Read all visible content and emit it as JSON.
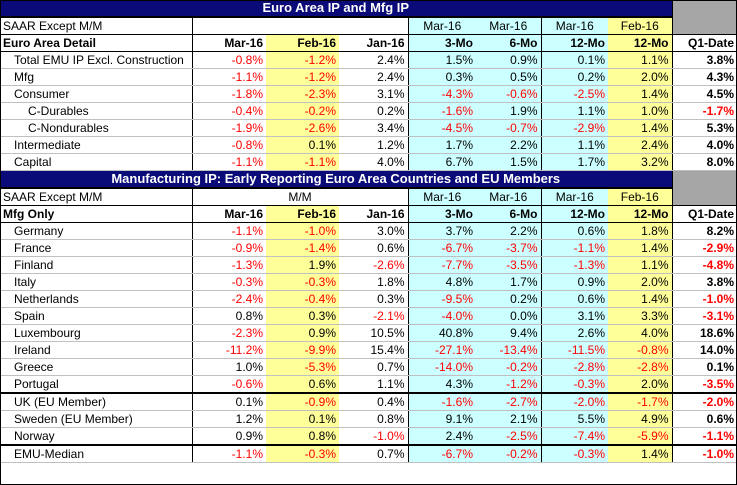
{
  "section1": {
    "title": "Euro Area IP and Mfg IP",
    "header_left": "SAAR Except M/M",
    "mm_label": "",
    "periods_top": [
      "Mar-16",
      "Mar-16",
      "Mar-16",
      "Feb-16"
    ],
    "detail_label": "Euro Area Detail",
    "columns": [
      "Mar-16",
      "Feb-16",
      "Jan-16",
      "3-Mo",
      "6-Mo",
      "12-Mo",
      "12-Mo",
      "Q1-Date"
    ],
    "rows": [
      {
        "label": "Total EMU IP Excl. Construction",
        "indent": 0,
        "values": [
          "-0.8%",
          "-1.2%",
          "2.4%",
          "1.5%",
          "0.9%",
          "0.1%",
          "1.1%",
          "3.8%"
        ]
      },
      {
        "label": "Mfg",
        "indent": 0,
        "values": [
          "-1.1%",
          "-1.2%",
          "2.4%",
          "0.3%",
          "0.5%",
          "0.2%",
          "2.0%",
          "4.3%"
        ]
      },
      {
        "label": "Consumer",
        "indent": 1,
        "values": [
          "-1.8%",
          "-2.3%",
          "3.1%",
          "-4.3%",
          "-0.6%",
          "-2.5%",
          "1.4%",
          "4.5%"
        ]
      },
      {
        "label": "C-Durables",
        "indent": 2,
        "values": [
          "-0.4%",
          "-0.2%",
          "0.2%",
          "-1.6%",
          "1.9%",
          "1.1%",
          "1.0%",
          "-1.7%"
        ]
      },
      {
        "label": "C-Nondurables",
        "indent": 2,
        "values": [
          "-1.9%",
          "-2.6%",
          "3.4%",
          "-4.5%",
          "-0.7%",
          "-2.9%",
          "1.4%",
          "5.3%"
        ]
      },
      {
        "label": "Intermediate",
        "indent": 1,
        "values": [
          "-0.8%",
          "0.1%",
          "1.2%",
          "1.7%",
          "2.2%",
          "1.1%",
          "2.4%",
          "4.0%"
        ]
      },
      {
        "label": "Capital",
        "indent": 1,
        "values": [
          "-1.1%",
          "-1.1%",
          "4.0%",
          "6.7%",
          "1.5%",
          "1.7%",
          "3.2%",
          "8.0%"
        ]
      }
    ]
  },
  "section2": {
    "title": "Manufacturing IP: Early Reporting Euro Area Countries and EU Members",
    "header_left": "SAAR Except M/M",
    "mm_label": "M/M",
    "periods_top": [
      "Mar-16",
      "Mar-16",
      "Mar-16",
      "Feb-16"
    ],
    "detail_label": "Mfg Only",
    "columns": [
      "Mar-16",
      "Feb-16",
      "Jan-16",
      "3-Mo",
      "6-Mo",
      "12-Mo",
      "12-Mo",
      "Q1-Date"
    ],
    "rows": [
      {
        "label": "Germany",
        "group": "emu",
        "values": [
          "-1.1%",
          "-1.0%",
          "3.0%",
          "3.7%",
          "2.2%",
          "0.6%",
          "1.8%",
          "8.2%"
        ]
      },
      {
        "label": "France",
        "group": "emu",
        "values": [
          "-0.9%",
          "-1.4%",
          "0.6%",
          "-6.7%",
          "-3.7%",
          "-1.1%",
          "1.4%",
          "-2.9%"
        ]
      },
      {
        "label": "Finland",
        "group": "emu",
        "values": [
          "-1.3%",
          "1.9%",
          "-2.6%",
          "-7.7%",
          "-3.5%",
          "-1.3%",
          "1.1%",
          "-4.8%"
        ]
      },
      {
        "label": "Italy",
        "group": "emu",
        "values": [
          "-0.3%",
          "-0.3%",
          "1.8%",
          "4.8%",
          "1.7%",
          "0.9%",
          "2.0%",
          "3.8%"
        ]
      },
      {
        "label": "Netherlands",
        "group": "emu",
        "values": [
          "-2.4%",
          "-0.4%",
          "0.3%",
          "-9.5%",
          "0.2%",
          "0.6%",
          "1.4%",
          "-1.0%"
        ]
      },
      {
        "label": "Spain",
        "group": "emu",
        "values": [
          "0.8%",
          "0.3%",
          "-2.1%",
          "-4.0%",
          "0.0%",
          "3.1%",
          "3.3%",
          "-3.1%"
        ]
      },
      {
        "label": "Luxembourg",
        "group": "emu",
        "values": [
          "-2.3%",
          "0.9%",
          "10.5%",
          "40.8%",
          "9.4%",
          "2.6%",
          "4.0%",
          "18.6%"
        ]
      },
      {
        "label": "Ireland",
        "group": "emu",
        "values": [
          "-11.2%",
          "-9.9%",
          "15.4%",
          "-27.1%",
          "-13.4%",
          "-11.5%",
          "-0.8%",
          "14.0%"
        ]
      },
      {
        "label": "Greece",
        "group": "emu",
        "values": [
          "1.0%",
          "-5.3%",
          "0.7%",
          "-14.0%",
          "-0.2%",
          "-2.8%",
          "-2.8%",
          "0.1%"
        ]
      },
      {
        "label": "Portugal",
        "group": "emu",
        "values": [
          "-0.6%",
          "0.6%",
          "1.1%",
          "4.3%",
          "-1.2%",
          "-0.3%",
          "2.0%",
          "-3.5%"
        ]
      },
      {
        "label": "UK (EU Member)",
        "group": "eu",
        "values": [
          "0.1%",
          "-0.9%",
          "0.4%",
          "-1.6%",
          "-2.7%",
          "-2.0%",
          "-1.7%",
          "-2.0%"
        ]
      },
      {
        "label": "Sweden (EU Member)",
        "group": "eu",
        "values": [
          "1.2%",
          "0.1%",
          "0.8%",
          "9.1%",
          "2.1%",
          "5.5%",
          "4.9%",
          "0.6%"
        ]
      },
      {
        "label": "Norway",
        "group": "eu",
        "values": [
          "0.9%",
          "0.8%",
          "-1.0%",
          "2.4%",
          "-2.5%",
          "-7.4%",
          "-5.9%",
          "-1.1%"
        ]
      }
    ],
    "median_row": {
      "label": "EMU-Median",
      "values": [
        "-1.1%",
        "-0.3%",
        "0.7%",
        "-6.7%",
        "-0.2%",
        "-0.3%",
        "1.4%",
        "-1.0%"
      ]
    }
  },
  "colors": {
    "banner": "#0a0a78",
    "blue_cols": "#ccffff",
    "yellow_cols": "#ffff99",
    "gray": "#a6a6a6",
    "negative": "#ff0000"
  }
}
